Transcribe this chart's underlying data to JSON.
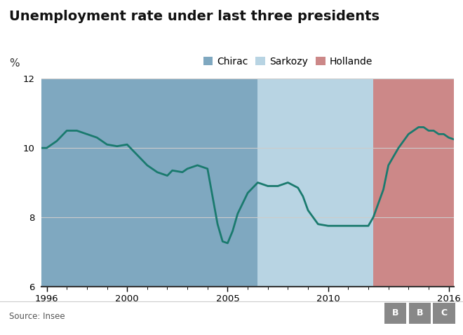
{
  "title": "Unemployment rate under last three presidents",
  "ylabel": "%",
  "source": "Source: Insee",
  "ylim": [
    6,
    12
  ],
  "xlim": [
    1995.75,
    2016.25
  ],
  "yticks": [
    6,
    8,
    10,
    12
  ],
  "xticks": [
    1996,
    2000,
    2005,
    2010,
    2016
  ],
  "presidents": [
    {
      "name": "Chirac",
      "start": 1995.75,
      "end": 2006.5,
      "color": "#7fa8c0"
    },
    {
      "name": "Sarkozy",
      "start": 2006.5,
      "end": 2012.25,
      "color": "#b8d4e3"
    },
    {
      "name": "Hollande",
      "start": 2012.25,
      "end": 2016.25,
      "color": "#cc8888"
    }
  ],
  "line_color": "#1a7a6e",
  "line_width": 2.0,
  "data": [
    [
      1995.75,
      10.0
    ],
    [
      1996.0,
      10.0
    ],
    [
      1996.5,
      10.2
    ],
    [
      1997.0,
      10.5
    ],
    [
      1997.5,
      10.5
    ],
    [
      1998.0,
      10.4
    ],
    [
      1998.5,
      10.3
    ],
    [
      1999.0,
      10.1
    ],
    [
      1999.5,
      10.05
    ],
    [
      2000.0,
      10.1
    ],
    [
      2000.5,
      9.8
    ],
    [
      2001.0,
      9.5
    ],
    [
      2001.5,
      9.3
    ],
    [
      2002.0,
      9.2
    ],
    [
      2002.25,
      9.35
    ],
    [
      2002.75,
      9.3
    ],
    [
      2003.0,
      9.4
    ],
    [
      2003.5,
      9.5
    ],
    [
      2004.0,
      9.4
    ],
    [
      2004.5,
      7.8
    ],
    [
      2004.75,
      7.3
    ],
    [
      2005.0,
      7.25
    ],
    [
      2005.25,
      7.6
    ],
    [
      2005.5,
      8.1
    ],
    [
      2005.75,
      8.4
    ],
    [
      2006.0,
      8.7
    ],
    [
      2006.5,
      9.0
    ],
    [
      2007.0,
      8.9
    ],
    [
      2007.5,
      8.9
    ],
    [
      2008.0,
      9.0
    ],
    [
      2008.5,
      8.85
    ],
    [
      2008.75,
      8.6
    ],
    [
      2009.0,
      8.2
    ],
    [
      2009.5,
      7.8
    ],
    [
      2010.0,
      7.75
    ],
    [
      2010.5,
      7.75
    ],
    [
      2011.0,
      7.75
    ],
    [
      2011.5,
      7.75
    ],
    [
      2012.0,
      7.75
    ],
    [
      2012.25,
      8.0
    ],
    [
      2012.75,
      8.8
    ],
    [
      2013.0,
      9.5
    ],
    [
      2013.5,
      10.0
    ],
    [
      2013.75,
      10.2
    ],
    [
      2014.0,
      10.4
    ],
    [
      2014.25,
      10.5
    ],
    [
      2014.5,
      10.6
    ],
    [
      2014.75,
      10.6
    ],
    [
      2015.0,
      10.5
    ],
    [
      2015.25,
      10.5
    ],
    [
      2015.5,
      10.4
    ],
    [
      2015.75,
      10.4
    ],
    [
      2016.0,
      10.3
    ],
    [
      2016.25,
      10.25
    ]
  ],
  "background_color": "#ffffff",
  "grid_color": "#cccccc",
  "bbc_color": "#888888"
}
